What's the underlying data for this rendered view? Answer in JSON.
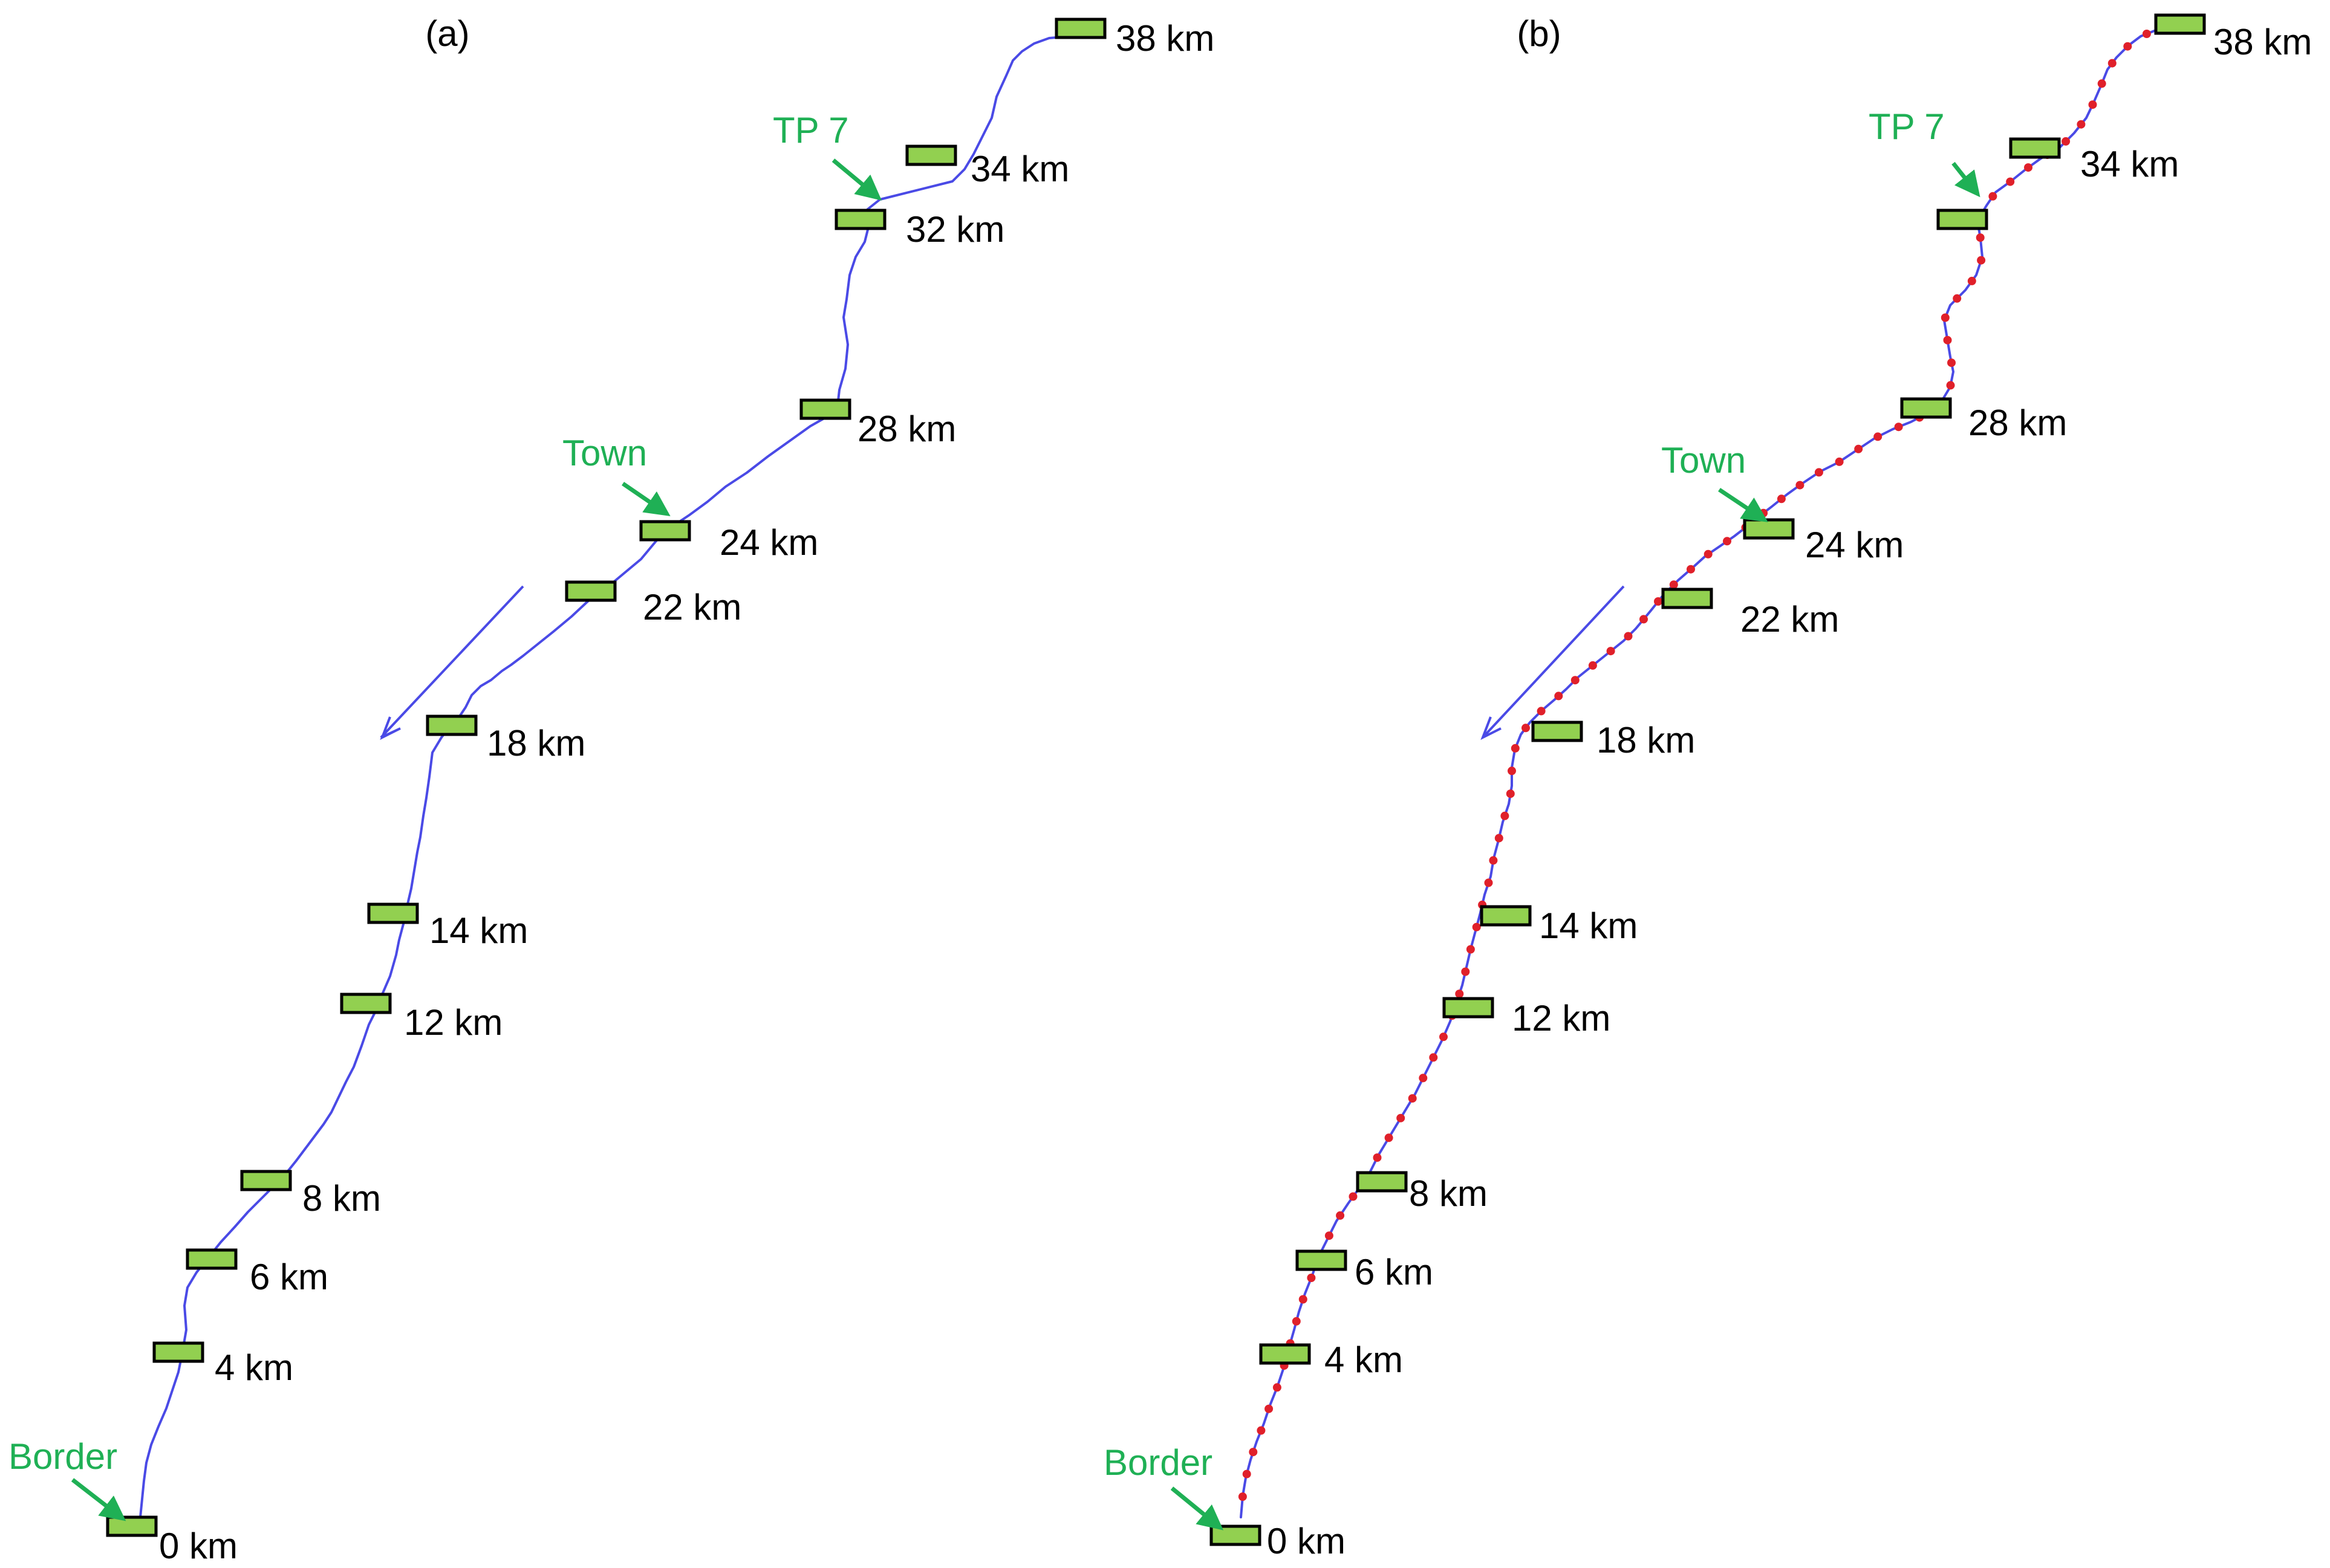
{
  "colors": {
    "route": "#4a4ae6",
    "marker_fill": "#92D050",
    "marker_border": "#000000",
    "callout": "#1fb055",
    "sample_point": "#e0202a",
    "text": "#000000"
  },
  "panels": [
    {
      "label": "(a)",
      "has_sample_points": false,
      "callouts": [
        {
          "text": "TP 7"
        },
        {
          "text": "Town"
        },
        {
          "text": "Border"
        }
      ],
      "markers": [
        {
          "label": "38 km"
        },
        {
          "label": "34 km"
        },
        {
          "label": "32 km"
        },
        {
          "label": "28 km"
        },
        {
          "label": "24 km"
        },
        {
          "label": "22 km"
        },
        {
          "label": "18 km"
        },
        {
          "label": "14 km"
        },
        {
          "label": "12 km"
        },
        {
          "label": "8 km"
        },
        {
          "label": "6 km"
        },
        {
          "label": "4 km"
        },
        {
          "label": "0 km"
        }
      ]
    },
    {
      "label": "(b)",
      "has_sample_points": true,
      "callouts": [
        {
          "text": "TP 7"
        },
        {
          "text": "Town"
        },
        {
          "text": "Border"
        }
      ],
      "markers": [
        {
          "label": "38 km"
        },
        {
          "label": "34 km"
        },
        {
          "label": "32 km"
        },
        {
          "label": "28 km"
        },
        {
          "label": "24 km"
        },
        {
          "label": "22 km"
        },
        {
          "label": "18 km"
        },
        {
          "label": "14 km"
        },
        {
          "label": "12 km"
        },
        {
          "label": "8 km"
        },
        {
          "label": "6 km"
        },
        {
          "label": "4 km"
        },
        {
          "label": "0 km"
        }
      ]
    }
  ]
}
